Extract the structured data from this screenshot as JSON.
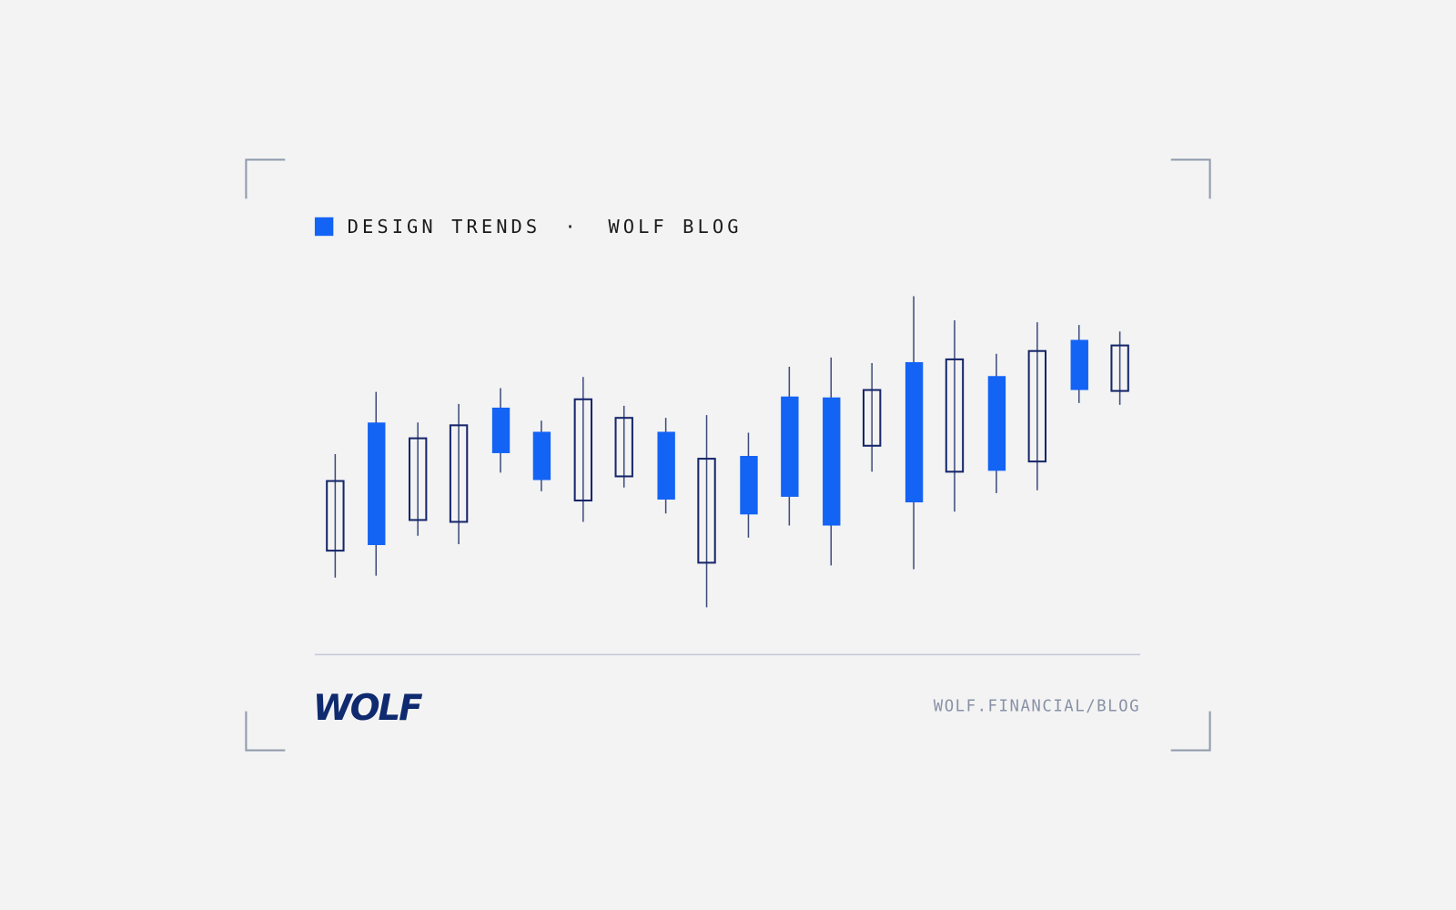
{
  "header": {
    "tag": "DESIGN TRENDS",
    "separator": "·",
    "blog": "WOLF BLOG"
  },
  "footer": {
    "logo": "WOLF",
    "url": "WOLF.FINANCIAL/BLOG"
  }
}
